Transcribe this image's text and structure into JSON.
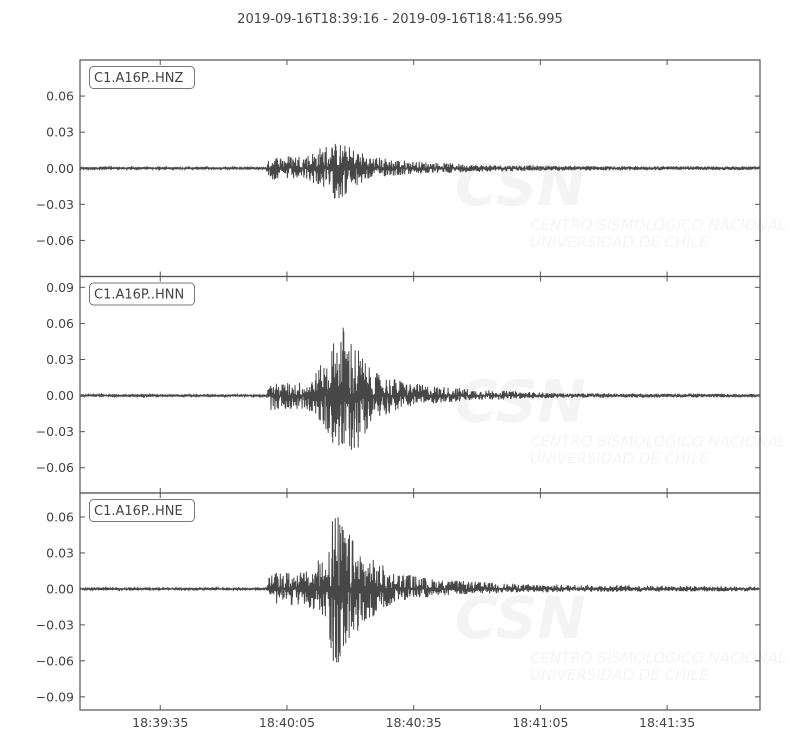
{
  "chart_data": {
    "type": "line",
    "title": "2019-09-16T18:39:16  -  2019-09-16T18:41:56.995",
    "xlim": [
      "18:39:16",
      "18:41:56.995"
    ],
    "x_ticks": [
      "18:39:35",
      "18:40:05",
      "18:40:35",
      "18:41:05",
      "18:41:35"
    ],
    "grid": false,
    "line_color": "#474747",
    "watermark": {
      "logo": "CSN",
      "line1": "CENTRO SISMOLÓGICO NACIONAL",
      "line2": "UNIVERSIDAD DE CHILE"
    },
    "panels": [
      {
        "label": "C1.A16P..HNZ",
        "ylim": [
          -0.09,
          0.09
        ],
        "y_ticks": [
          0.06,
          0.03,
          0.0,
          -0.03,
          -0.06
        ],
        "y_tick_labels": [
          "0.06",
          "0.03",
          "0.00",
          "−0.03",
          "−0.06"
        ],
        "envelope": [
          [
            "18:39:16",
            0.001,
            -0.001
          ],
          [
            "18:40:00",
            0.001,
            -0.001
          ],
          [
            "18:40:01",
            0.01,
            -0.01
          ],
          [
            "18:40:10",
            0.012,
            -0.01
          ],
          [
            "18:40:14",
            0.02,
            -0.018
          ],
          [
            "18:40:17",
            0.022,
            -0.028
          ],
          [
            "18:40:20",
            0.018,
            -0.02
          ],
          [
            "18:40:25",
            0.01,
            -0.008
          ],
          [
            "18:40:35",
            0.006,
            -0.005
          ],
          [
            "18:40:50",
            0.003,
            -0.003
          ],
          [
            "18:41:10",
            0.002,
            -0.002
          ],
          [
            "18:41:56",
            0.0015,
            -0.0015
          ]
        ]
      },
      {
        "label": "C1.A16P..HNN",
        "ylim": [
          -0.081,
          0.099
        ],
        "y_ticks": [
          0.09,
          0.06,
          0.03,
          0.0,
          -0.03,
          -0.06
        ],
        "y_tick_labels": [
          "0.09",
          "0.06",
          "0.03",
          "0.00",
          "−0.03",
          "−0.06"
        ],
        "envelope": [
          [
            "18:39:16",
            0.001,
            -0.001
          ],
          [
            "18:40:00",
            0.001,
            -0.001
          ],
          [
            "18:40:01",
            0.01,
            -0.012
          ],
          [
            "18:40:10",
            0.012,
            -0.012
          ],
          [
            "18:40:14",
            0.03,
            -0.03
          ],
          [
            "18:40:18",
            0.062,
            -0.051
          ],
          [
            "18:40:22",
            0.04,
            -0.045
          ],
          [
            "18:40:25",
            0.02,
            -0.02
          ],
          [
            "18:40:35",
            0.01,
            -0.008
          ],
          [
            "18:40:50",
            0.005,
            -0.004
          ],
          [
            "18:41:10",
            0.002,
            -0.002
          ],
          [
            "18:41:56",
            0.0015,
            -0.0015
          ]
        ]
      },
      {
        "label": "C1.A16P..HNE",
        "ylim": [
          -0.101,
          0.08
        ],
        "y_ticks": [
          0.06,
          0.03,
          0.0,
          -0.03,
          -0.06,
          -0.09
        ],
        "y_tick_labels": [
          "0.06",
          "0.03",
          "0.00",
          "−0.03",
          "−0.06",
          "−0.09"
        ],
        "envelope": [
          [
            "18:39:16",
            0.001,
            -0.001
          ],
          [
            "18:40:00",
            0.001,
            -0.001
          ],
          [
            "18:40:01",
            0.013,
            -0.012
          ],
          [
            "18:40:10",
            0.015,
            -0.015
          ],
          [
            "18:40:14",
            0.03,
            -0.025
          ],
          [
            "18:40:16",
            0.069,
            -0.083
          ],
          [
            "18:40:19",
            0.05,
            -0.05
          ],
          [
            "18:40:23",
            0.03,
            -0.03
          ],
          [
            "18:40:30",
            0.015,
            -0.012
          ],
          [
            "18:40:40",
            0.008,
            -0.006
          ],
          [
            "18:41:00",
            0.004,
            -0.003
          ],
          [
            "18:41:56",
            0.002,
            -0.002
          ]
        ]
      }
    ]
  }
}
